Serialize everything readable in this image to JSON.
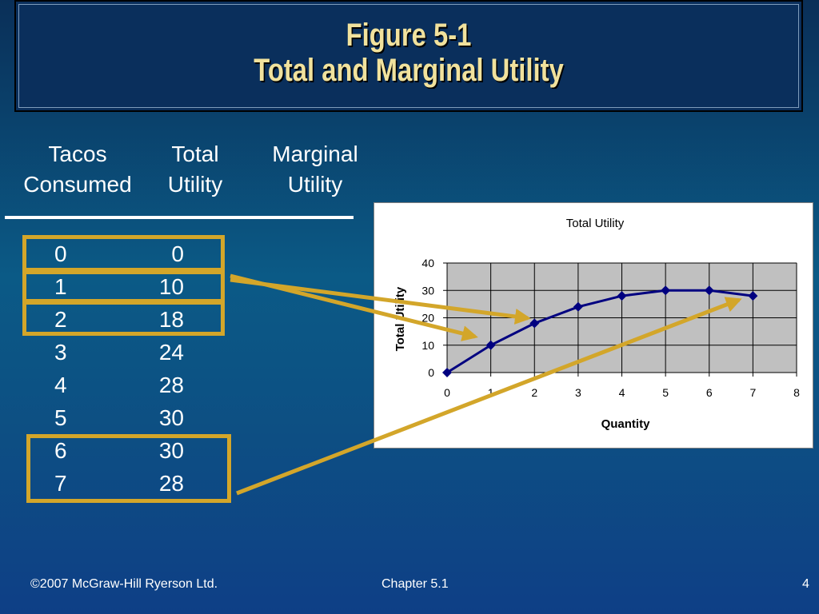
{
  "title": {
    "line1": "Figure 5-1",
    "line2": "Total and Marginal Utility"
  },
  "table": {
    "headers": [
      {
        "line1": "Tacos",
        "line2": "Consumed"
      },
      {
        "line1": "Total",
        "line2": "Utility"
      },
      {
        "line1": "Marginal",
        "line2": "Utility"
      }
    ],
    "rows": [
      {
        "quantity": "0",
        "total": "0"
      },
      {
        "quantity": "1",
        "total": "10"
      },
      {
        "quantity": "2",
        "total": "18"
      },
      {
        "quantity": "3",
        "total": "24"
      },
      {
        "quantity": "4",
        "total": "28"
      },
      {
        "quantity": "5",
        "total": "30"
      },
      {
        "quantity": "6",
        "total": "30"
      },
      {
        "quantity": "7",
        "total": "28"
      }
    ]
  },
  "chart_data": {
    "type": "line",
    "title": "Total Utility",
    "xlabel": "Quantity",
    "ylabel": "Total Utility",
    "x": [
      0,
      1,
      2,
      3,
      4,
      5,
      6,
      7
    ],
    "series": [
      {
        "values": [
          0,
          10,
          18,
          24,
          28,
          30,
          30,
          28
        ]
      }
    ],
    "xlim": [
      0,
      8
    ],
    "ylim": [
      0,
      40
    ],
    "xticks": [
      "0",
      "1",
      "2",
      "3",
      "4",
      "5",
      "6",
      "7",
      "8"
    ],
    "yticks": [
      "0",
      "10",
      "20",
      "30",
      "40"
    ],
    "grid": true,
    "legend": "none",
    "colors": {
      "line": "#000080",
      "plot_bg": "#c0c0c0",
      "highlight": "#d3a62a"
    }
  },
  "footer": {
    "left": "©2007 McGraw-Hill Ryerson Ltd.",
    "center": "Chapter 5.1",
    "right": "4"
  }
}
